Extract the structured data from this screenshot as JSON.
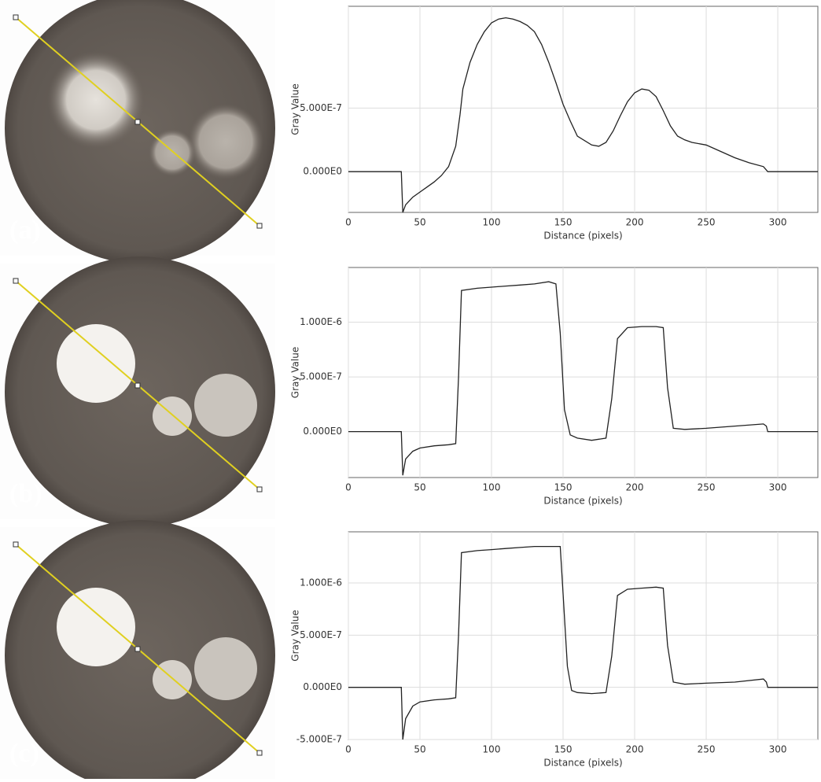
{
  "chart_data": [
    {
      "type": "line",
      "label": "(a)",
      "xlabel": "Distance (pixels)",
      "ylabel": "Gray Value",
      "xlim": [
        0,
        328
      ],
      "ylim": [
        -3.2e-07,
        1.3e-06
      ],
      "xticks": [
        0,
        50,
        100,
        150,
        200,
        250,
        300
      ],
      "yticks": [
        {
          "value": 0,
          "label": "0.000E0"
        },
        {
          "value": 5e-07,
          "label": "5.000E-7"
        }
      ],
      "grid": true,
      "series": [
        {
          "color": "#222222",
          "x": [
            0,
            37,
            38,
            40,
            45,
            50,
            55,
            60,
            65,
            70,
            75,
            78,
            80,
            85,
            90,
            95,
            100,
            105,
            110,
            115,
            120,
            125,
            130,
            135,
            140,
            145,
            150,
            155,
            160,
            170,
            175,
            180,
            185,
            190,
            195,
            200,
            205,
            210,
            215,
            220,
            225,
            230,
            235,
            240,
            250,
            260,
            270,
            280,
            290,
            293,
            328
          ],
          "values": [
            0,
            0,
            -3.2e-07,
            -2.6e-07,
            -2e-07,
            -1.6e-07,
            -1.2e-07,
            -8e-08,
            -3e-08,
            4e-08,
            2e-07,
            4.5e-07,
            6.5e-07,
            8.6e-07,
            1e-06,
            1.1e-06,
            1.17e-06,
            1.2e-06,
            1.21e-06,
            1.2e-06,
            1.18e-06,
            1.15e-06,
            1.1e-06,
            1e-06,
            8.6e-07,
            7e-07,
            5.3e-07,
            4e-07,
            2.8e-07,
            2.1e-07,
            2e-07,
            2.3e-07,
            3.2e-07,
            4.4e-07,
            5.5e-07,
            6.2e-07,
            6.5e-07,
            6.4e-07,
            5.9e-07,
            4.8e-07,
            3.6e-07,
            2.8e-07,
            2.5e-07,
            2.3e-07,
            2.1e-07,
            1.6e-07,
            1.1e-07,
            7e-08,
            4e-08,
            0,
            0
          ]
        }
      ]
    },
    {
      "type": "line",
      "label": "(b)",
      "xlabel": "Distance (pixels)",
      "ylabel": "Gray Value",
      "xlim": [
        0,
        328
      ],
      "ylim": [
        -4.2e-07,
        1.5e-06
      ],
      "xticks": [
        0,
        50,
        100,
        150,
        200,
        250,
        300
      ],
      "yticks": [
        {
          "value": 0,
          "label": "0.000E0"
        },
        {
          "value": 5e-07,
          "label": "5.000E-7"
        },
        {
          "value": 1e-06,
          "label": "1.000E-6"
        }
      ],
      "grid": true,
      "series": [
        {
          "color": "#222222",
          "x": [
            0,
            37,
            38,
            40,
            45,
            50,
            60,
            70,
            75,
            77,
            79,
            90,
            100,
            110,
            120,
            130,
            140,
            145,
            148,
            151,
            155,
            160,
            170,
            180,
            184,
            188,
            195,
            205,
            215,
            220,
            223,
            227,
            235,
            250,
            270,
            290,
            292,
            293,
            328
          ],
          "values": [
            0,
            0,
            -4e-07,
            -2.5e-07,
            -1.8e-07,
            -1.5e-07,
            -1.3e-07,
            -1.2e-07,
            -1.1e-07,
            5e-07,
            1.29e-06,
            1.31e-06,
            1.32e-06,
            1.33e-06,
            1.34e-06,
            1.35e-06,
            1.37e-06,
            1.35e-06,
            9e-07,
            2e-07,
            -3e-08,
            -6e-08,
            -8e-08,
            -6e-08,
            3e-07,
            8.5e-07,
            9.5e-07,
            9.6e-07,
            9.6e-07,
            9.5e-07,
            4e-07,
            3e-08,
            2e-08,
            3e-08,
            5e-08,
            7e-08,
            5e-08,
            0,
            0
          ]
        }
      ]
    },
    {
      "type": "line",
      "label": "(c)",
      "xlabel": "Distance (pixels)",
      "ylabel": "Gray Value",
      "xlim": [
        0,
        328
      ],
      "ylim": [
        -5e-07,
        1.49e-06
      ],
      "xticks": [
        0,
        50,
        100,
        150,
        200,
        250,
        300
      ],
      "yticks": [
        {
          "value": -5e-07,
          "label": "-5.000E-7"
        },
        {
          "value": 0,
          "label": "0.000E0"
        },
        {
          "value": 5e-07,
          "label": "5.000E-7"
        },
        {
          "value": 1e-06,
          "label": "1.000E-6"
        }
      ],
      "grid": true,
      "series": [
        {
          "color": "#222222",
          "x": [
            0,
            37,
            38,
            40,
            45,
            50,
            60,
            70,
            75,
            77,
            79,
            90,
            100,
            110,
            120,
            130,
            140,
            148,
            150,
            153,
            156,
            160,
            170,
            180,
            184,
            188,
            195,
            205,
            215,
            220,
            223,
            227,
            235,
            250,
            270,
            290,
            292,
            293,
            328
          ],
          "values": [
            0,
            0,
            -5e-07,
            -3e-07,
            -1.8e-07,
            -1.4e-07,
            -1.2e-07,
            -1.1e-07,
            -1e-07,
            5e-07,
            1.29e-06,
            1.31e-06,
            1.32e-06,
            1.33e-06,
            1.34e-06,
            1.35e-06,
            1.35e-06,
            1.35e-06,
            9e-07,
            2e-07,
            -3e-08,
            -5e-08,
            -6e-08,
            -5e-08,
            3e-07,
            8.8e-07,
            9.4e-07,
            9.5e-07,
            9.6e-07,
            9.5e-07,
            4e-07,
            5e-08,
            3e-08,
            4e-08,
            5e-08,
            8e-08,
            5e-08,
            0,
            0
          ]
        }
      ]
    }
  ]
}
